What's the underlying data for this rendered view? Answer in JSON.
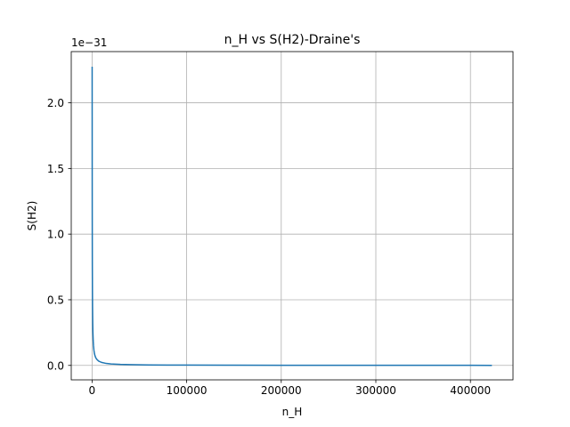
{
  "chart_data": {
    "type": "line",
    "title": "n_H vs S(H2)-Draine's",
    "xlabel": "n_H",
    "ylabel": "S(H2)",
    "y_scale_label": "1e−31",
    "xlim": [
      -22000,
      445000
    ],
    "ylim": [
      -0.11,
      2.39
    ],
    "grid": true,
    "x_ticks": [
      0,
      100000,
      200000,
      300000,
      400000
    ],
    "x_tick_labels": [
      "0",
      "100000",
      "200000",
      "300000",
      "400000"
    ],
    "y_ticks": [
      0.0,
      0.5,
      1.0,
      1.5,
      2.0
    ],
    "y_tick_labels": [
      "0.0",
      "0.5",
      "1.0",
      "1.5",
      "2.0"
    ],
    "series": [
      {
        "color": "#1f77b4",
        "x": [
          100,
          150,
          200,
          300,
          400,
          500,
          700,
          900,
          1200,
          1500,
          2000,
          2500,
          3000,
          4000,
          5000,
          7000,
          10000,
          15000,
          20000,
          30000,
          40000,
          60000,
          80000,
          100000,
          150000,
          200000,
          250000,
          300000,
          350000,
          400000,
          422000
        ],
        "y": [
          2.27,
          1.52,
          1.14,
          0.76,
          0.57,
          0.455,
          0.325,
          0.253,
          0.19,
          0.152,
          0.114,
          0.091,
          0.076,
          0.057,
          0.046,
          0.033,
          0.023,
          0.015,
          0.0114,
          0.0076,
          0.0057,
          0.0038,
          0.0028,
          0.0023,
          0.0015,
          0.0011,
          0.0009,
          0.0008,
          0.0006,
          0.0006,
          0.0005
        ]
      }
    ]
  }
}
